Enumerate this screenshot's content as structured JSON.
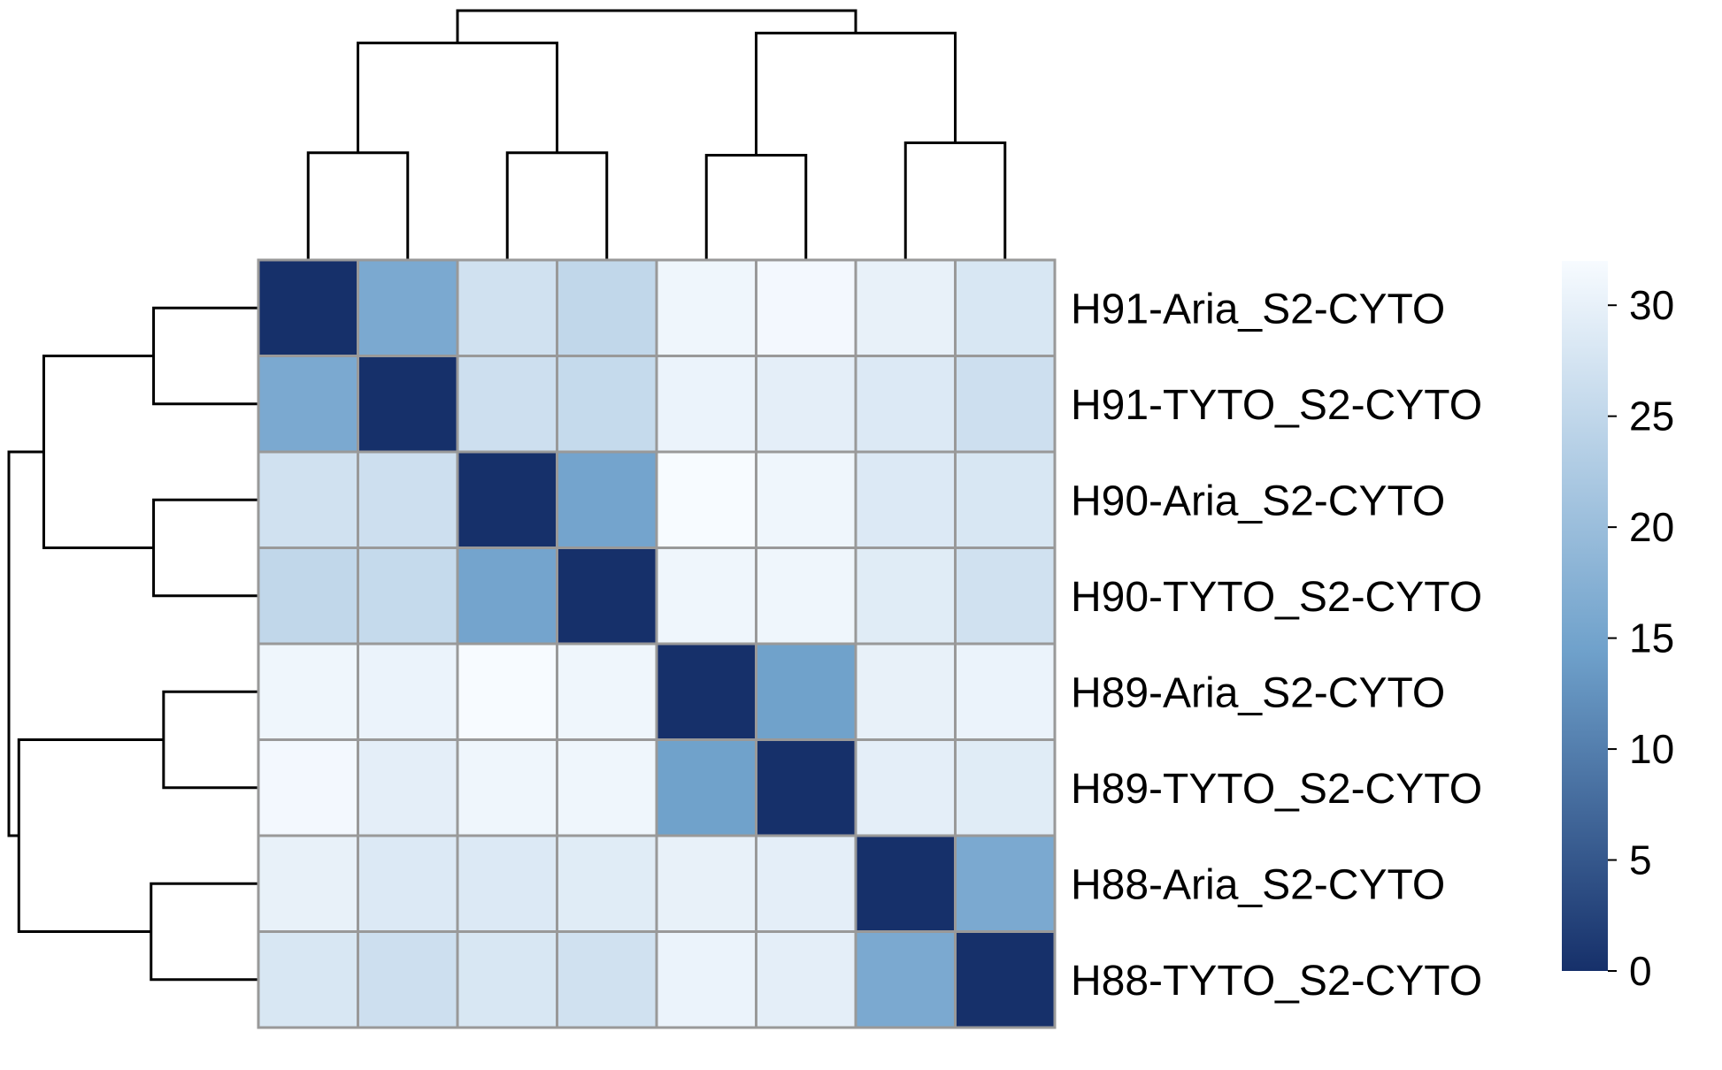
{
  "chart_data": {
    "type": "heatmap",
    "title": "",
    "xlabel": "",
    "ylabel": "",
    "rows": [
      "H91-Aria_S2-CYTO",
      "H91-TYTO_S2-CYTO",
      "H90-Aria_S2-CYTO",
      "H90-TYTO_S2-CYTO",
      "H89-Aria_S2-CYTO",
      "H89-TYTO_S2-CYTO",
      "H88-Aria_S2-CYTO",
      "H88-TYTO_S2-CYTO"
    ],
    "columns": [
      "H91-Aria_S2-CYTO",
      "H91-TYTO_S2-CYTO",
      "H90-Aria_S2-CYTO",
      "H90-TYTO_S2-CYTO",
      "H89-Aria_S2-CYTO",
      "H89-TYTO_S2-CYTO",
      "H88-Aria_S2-CYTO",
      "H88-TYTO_S2-CYTO"
    ],
    "values": [
      [
        0,
        16,
        27,
        25,
        31,
        31.5,
        30,
        28
      ],
      [
        16,
        0,
        26.5,
        25.5,
        30.5,
        29.5,
        28.5,
        26.5
      ],
      [
        27,
        26.5,
        0,
        15,
        32,
        31,
        28.5,
        28
      ],
      [
        25,
        25.5,
        15,
        0,
        31,
        31,
        29,
        27
      ],
      [
        31,
        30.5,
        32,
        31,
        0,
        14.5,
        30,
        30.5
      ],
      [
        31.5,
        29.5,
        31,
        31,
        14.5,
        0,
        29.5,
        29
      ],
      [
        30,
        28.5,
        28.5,
        29,
        30,
        29.5,
        0,
        16
      ],
      [
        28,
        26.5,
        28,
        27,
        30.5,
        29.5,
        16,
        0
      ]
    ],
    "color_scale": {
      "min": 0,
      "max": 32,
      "ticks": [
        0,
        5,
        10,
        15,
        20,
        25,
        30
      ],
      "low_color": "#16306a",
      "mid_color": "#6fa1cb",
      "high_color": "#f7fbff"
    },
    "cell_border_color": "#999999",
    "legend_position": "right",
    "column_dendrogram": [
      {
        "pair": [
          1,
          2
        ],
        "height": 0.43
      },
      {
        "pair": [
          3,
          4
        ],
        "height": 0.43
      },
      {
        "pair": [
          5,
          6
        ],
        "height": 0.42
      },
      {
        "pair": [
          7,
          8
        ],
        "height": 0.47
      },
      {
        "pair": [
          "1-2",
          "3-4"
        ],
        "height": 0.87
      },
      {
        "pair": [
          "5-6",
          "7-8"
        ],
        "height": 0.91
      },
      {
        "pair": [
          "1-4",
          "5-8"
        ],
        "height": 1.0
      }
    ],
    "row_dendrogram": [
      {
        "pair": [
          1,
          2
        ],
        "height": 0.42
      },
      {
        "pair": [
          3,
          4
        ],
        "height": 0.42
      },
      {
        "pair": [
          5,
          6
        ],
        "height": 0.38
      },
      {
        "pair": [
          7,
          8
        ],
        "height": 0.43
      },
      {
        "pair": [
          "1-2",
          "3-4"
        ],
        "height": 0.86
      },
      {
        "pair": [
          "5-6",
          "7-8"
        ],
        "height": 0.96
      },
      {
        "pair": [
          "1-4",
          "5-8"
        ],
        "height": 1.0
      }
    ]
  }
}
